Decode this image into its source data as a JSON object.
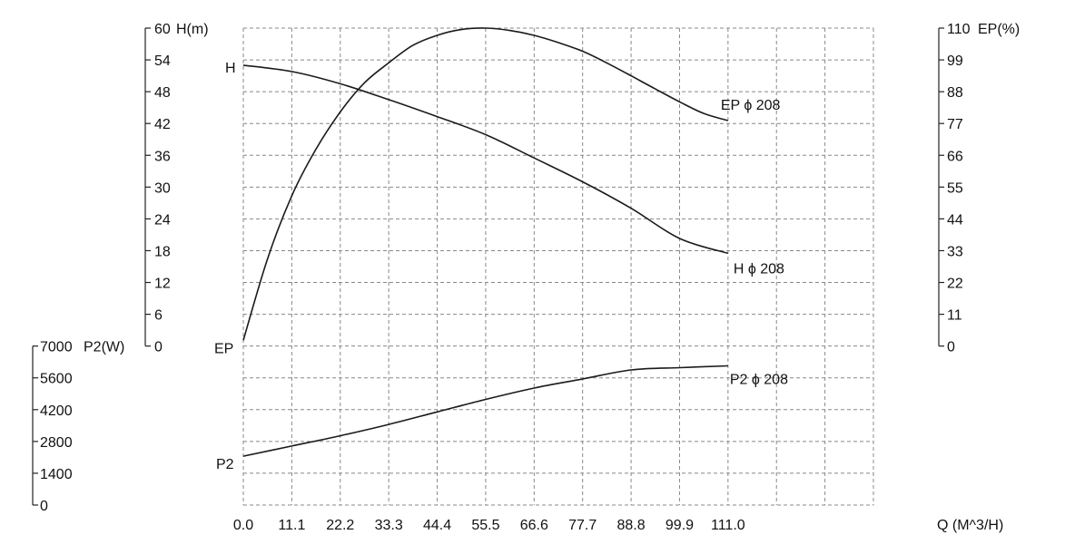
{
  "chart_data": {
    "type": "line",
    "x_axis": {
      "label": "Q (M^3/H)",
      "ticks": [
        "0.0",
        "11.1",
        "22.2",
        "33.3",
        "44.4",
        "55.5",
        "66.6",
        "77.7",
        "88.8",
        "99.9",
        "111.0"
      ],
      "range": [
        0,
        111.0
      ]
    },
    "y_axes": {
      "head": {
        "label": "H(m)",
        "ticks": [
          "60",
          "54",
          "48",
          "42",
          "36",
          "30",
          "24",
          "18",
          "12",
          "6",
          "0"
        ],
        "range": [
          0,
          60
        ]
      },
      "efficiency": {
        "label": "EP(%)",
        "ticks": [
          "110",
          "99",
          "88",
          "77",
          "66",
          "55",
          "44",
          "33",
          "22",
          "11",
          "0"
        ],
        "range": [
          0,
          110
        ]
      },
      "power": {
        "label": "P2(W)",
        "ticks": [
          "7000",
          "5600",
          "4200",
          "2800",
          "1400",
          "0"
        ],
        "range": [
          0,
          7000
        ]
      }
    },
    "series": [
      {
        "name": "H",
        "end_label": "H ϕ 208",
        "axis": "head",
        "x": [
          0,
          11.1,
          22.2,
          33.3,
          44.4,
          55.5,
          66.6,
          77.7,
          88.8,
          99.9,
          111.0
        ],
        "y": [
          53.0,
          51.8,
          49.5,
          46.5,
          43.3,
          39.9,
          35.5,
          31.0,
          26.0,
          20.3,
          17.5
        ]
      },
      {
        "name": "EP",
        "end_label": "EP ϕ 208",
        "axis": "efficiency",
        "x": [
          0,
          5.5,
          11.1,
          16.6,
          22.2,
          27.7,
          33.3,
          38.8,
          44.4,
          49.9,
          55.5,
          61.0,
          66.6,
          72.1,
          77.7,
          83.2,
          88.8,
          94.3,
          99.9,
          105.4,
          111.0
        ],
        "y": [
          2,
          30,
          52,
          68,
          81,
          91,
          98,
          104,
          107.5,
          109.5,
          110,
          109.2,
          107.5,
          105,
          102,
          98,
          93.5,
          89,
          84.5,
          80.5,
          78
        ]
      },
      {
        "name": "P2",
        "end_label": "P2 ϕ 208",
        "axis": "power",
        "x": [
          0,
          11.1,
          22.2,
          33.3,
          44.4,
          55.5,
          66.6,
          77.7,
          88.8,
          99.9,
          111.0
        ],
        "y": [
          2150,
          2600,
          3050,
          3550,
          4100,
          4650,
          5150,
          5550,
          5950,
          6050,
          6130
        ]
      }
    ],
    "grid": true
  }
}
